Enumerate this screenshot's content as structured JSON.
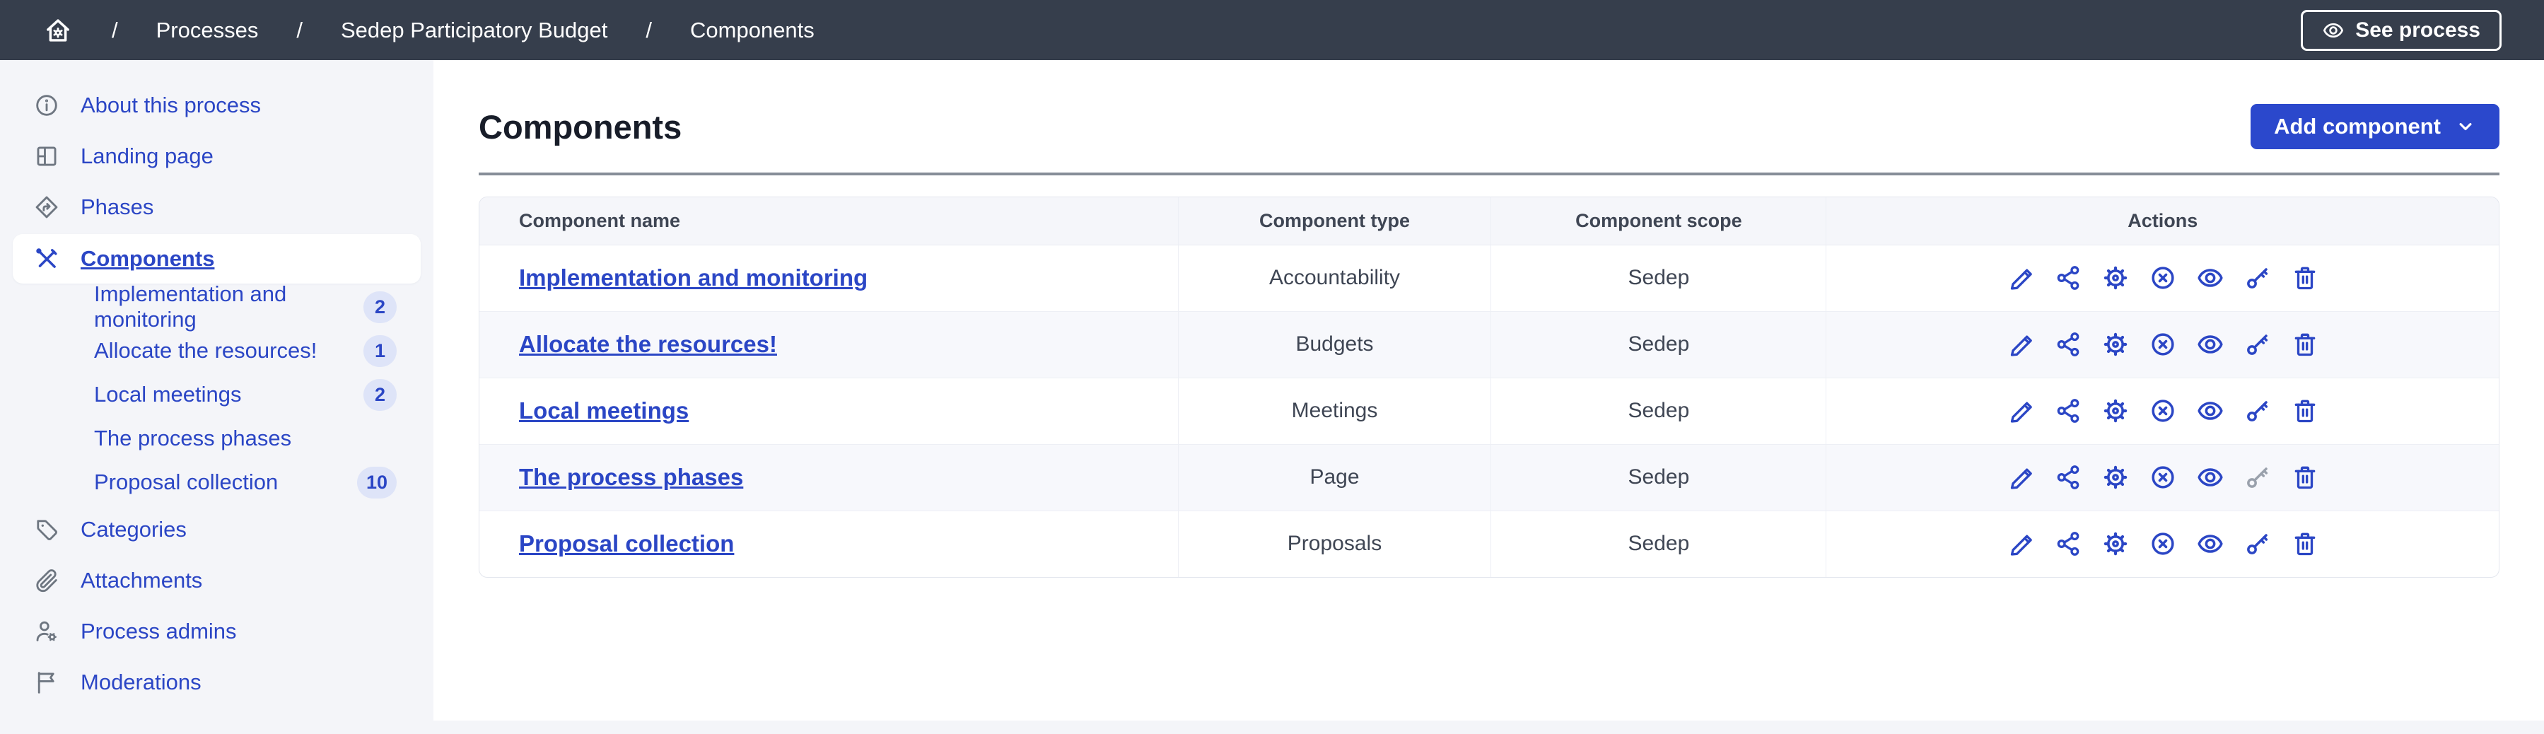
{
  "topbar": {
    "separator": "/",
    "breadcrumb": [
      {
        "label": "Processes"
      },
      {
        "label": "Sedep Participatory Budget"
      },
      {
        "label": "Components"
      }
    ],
    "see_process_label": "See process",
    "home_icon": "home-gear-icon",
    "see_process_icon": "eye-icon"
  },
  "sidebar": {
    "items": [
      {
        "label": "About this process",
        "icon": "info-icon",
        "active": false
      },
      {
        "label": "Landing page",
        "icon": "layout-icon",
        "active": false
      },
      {
        "label": "Phases",
        "icon": "phases-icon",
        "active": false
      },
      {
        "label": "Components",
        "icon": "tools-icon",
        "active": true,
        "children": [
          {
            "label": "Implementation and monitoring",
            "count": "2"
          },
          {
            "label": "Allocate the resources!",
            "count": "1"
          },
          {
            "label": "Local meetings",
            "count": "2"
          },
          {
            "label": "The process phases",
            "count": ""
          },
          {
            "label": "Proposal collection",
            "count": "10"
          }
        ]
      },
      {
        "label": "Categories",
        "icon": "tag-icon",
        "active": false
      },
      {
        "label": "Attachments",
        "icon": "paperclip-icon",
        "active": false
      },
      {
        "label": "Process admins",
        "icon": "user-gear-icon",
        "active": false
      },
      {
        "label": "Moderations",
        "icon": "flag-icon",
        "active": false
      }
    ]
  },
  "main": {
    "title": "Components",
    "add_component_label": "Add component",
    "add_component_icon": "chevron-down-icon",
    "table": {
      "headers": [
        "Component name",
        "Component type",
        "Component scope",
        "Actions"
      ],
      "action_icons": [
        "edit",
        "share",
        "configure",
        "unpublish",
        "preview",
        "permissions",
        "delete"
      ],
      "rows": [
        {
          "name": "Implementation and monitoring",
          "type": "Accountability",
          "scope": "Sedep",
          "disabled_actions": []
        },
        {
          "name": "Allocate the resources!",
          "type": "Budgets",
          "scope": "Sedep",
          "disabled_actions": []
        },
        {
          "name": "Local meetings",
          "type": "Meetings",
          "scope": "Sedep",
          "disabled_actions": []
        },
        {
          "name": "The process phases",
          "type": "Page",
          "scope": "Sedep",
          "disabled_actions": [
            "permissions"
          ]
        },
        {
          "name": "Proposal collection",
          "type": "Proposals",
          "scope": "Sedep",
          "disabled_actions": []
        }
      ]
    }
  },
  "colors": {
    "topbar_bg": "#363E4C",
    "primary": "#2B46C5",
    "button_bg": "#2B48CC",
    "badge_bg": "#DEE4F8",
    "page_bg": "#F4F5F9",
    "table_header_bg": "#F5F6FA",
    "row_alt_bg": "#F7F8FC",
    "disabled_icon": "#9AA1AC"
  }
}
